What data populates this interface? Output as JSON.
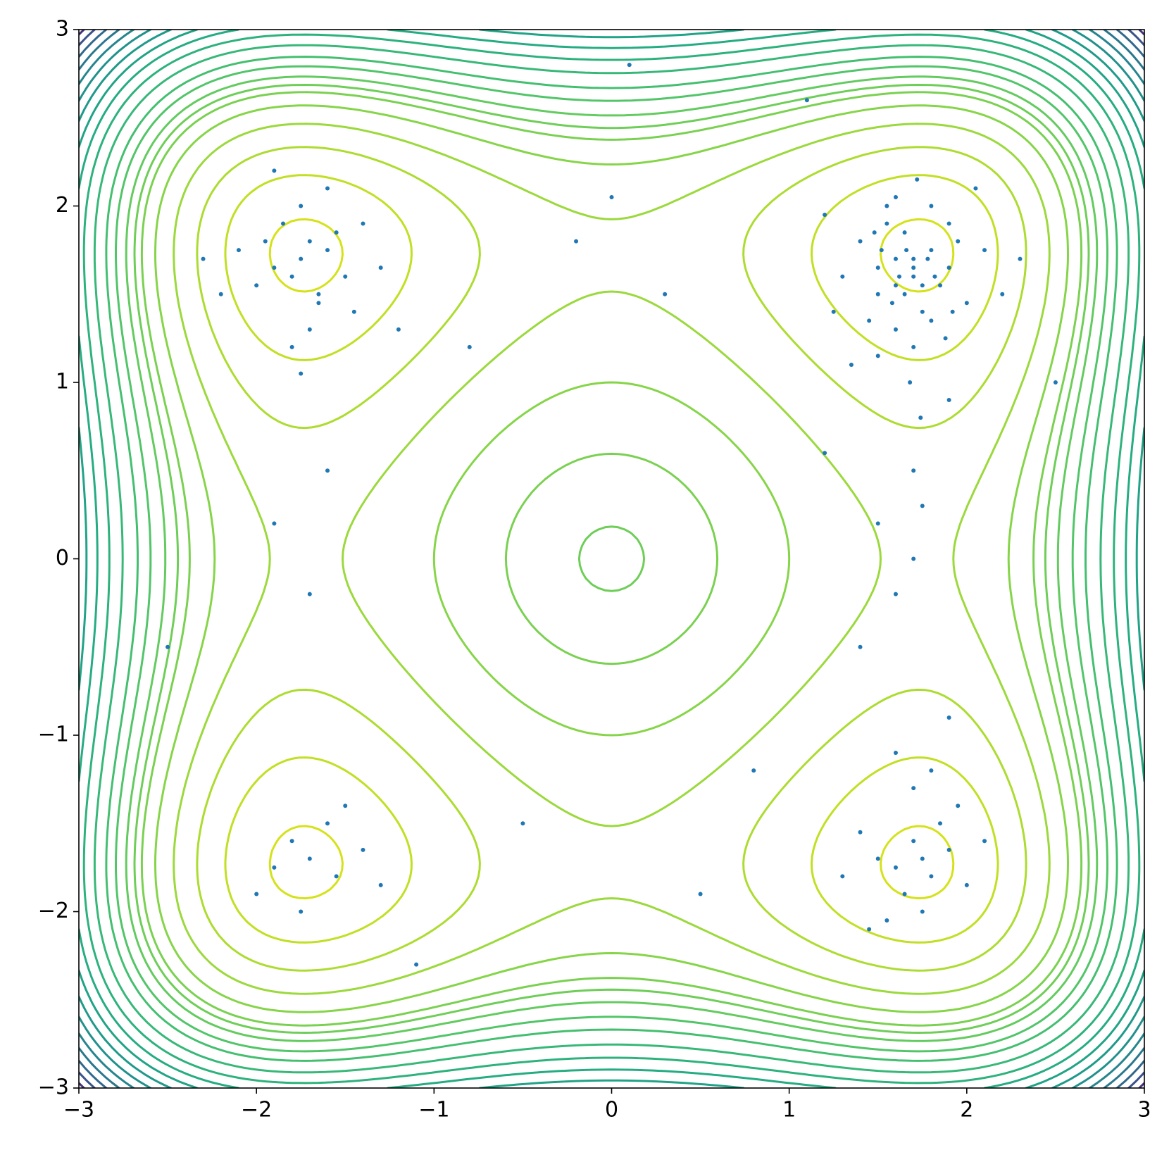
{
  "chart_data": {
    "type": "contour",
    "xlim": [
      -3,
      3
    ],
    "ylim": [
      -3,
      3
    ],
    "xticks": [
      {
        "value": -3,
        "label": "−3"
      },
      {
        "value": -2,
        "label": "−2"
      },
      {
        "value": -1,
        "label": "−1"
      },
      0,
      1,
      2,
      3
    ],
    "yticks": [
      {
        "value": -3,
        "label": "−3"
      },
      {
        "value": -2,
        "label": "−2"
      },
      {
        "value": -1,
        "label": "−1"
      },
      0,
      1,
      2,
      3
    ],
    "contours": {
      "levels": [
        0.5,
        3,
        6,
        9.5,
        13,
        16,
        17.8,
        20,
        23,
        26,
        30,
        34,
        38,
        42,
        46,
        50,
        54,
        58,
        62,
        66,
        70
      ],
      "colors": [
        "#d5e21a",
        "#c2df23",
        "#addc30",
        "#9bd93c",
        "#86d549",
        "#7ad151",
        "#6ece58",
        "#63cb5f",
        "#52c569",
        "#44bf70",
        "#37b878",
        "#2db27d",
        "#25ac82",
        "#20a386",
        "#1f9a8a",
        "#21918c",
        "#25858e",
        "#2a788e",
        "#31688e",
        "#3b528b",
        "#46327e"
      ]
    },
    "scatter": {
      "color": "#1f77b4",
      "x": [
        1.6,
        1.7,
        1.8,
        1.5,
        1.9,
        1.65,
        1.75,
        1.55,
        1.85,
        1.7,
        1.4,
        2.0,
        1.6,
        1.8,
        1.3,
        2.1,
        1.7,
        1.5,
        1.9,
        1.6,
        1.75,
        1.45,
        1.95,
        1.62,
        1.78,
        1.2,
        2.2,
        1.68,
        1.52,
        1.88,
        1.72,
        1.58,
        1.82,
        1.35,
        2.05,
        1.66,
        1.74,
        1.48,
        1.92,
        1.6,
        1.7,
        1.8,
        1.55,
        1.65,
        1.25,
        2.3,
        1.7,
        1.9,
        1.5,
        1.75,
        -1.75,
        -1.7,
        -1.8,
        -1.6,
        -1.9,
        -1.65,
        -1.85,
        -1.55,
        -2.0,
        -1.5,
        -1.75,
        -1.95,
        -1.45,
        -2.1,
        -1.7,
        -1.8,
        -1.6,
        -1.4,
        -2.2,
        -1.3,
        -1.75,
        -1.65,
        -1.9,
        -1.2,
        -2.3,
        1.75,
        1.7,
        1.8,
        1.6,
        1.9,
        1.65,
        1.85,
        1.5,
        2.0,
        1.4,
        1.75,
        1.95,
        1.55,
        1.3,
        2.1,
        1.7,
        1.8,
        1.6,
        1.45,
        1.9,
        -1.7,
        -1.8,
        -1.55,
        -1.9,
        -1.6,
        -1.4,
        -2.0,
        -1.75,
        -1.3,
        -1.5,
        0.0,
        -0.2,
        0.3,
        0.5,
        -0.8,
        1.5,
        1.6,
        1.4,
        1.7,
        1.2,
        -1.9,
        -1.7,
        -1.6,
        0.8,
        -0.5,
        2.5,
        -2.5,
        0.1,
        -1.1,
        1.1
      ],
      "y": [
        1.7,
        1.6,
        1.75,
        1.5,
        1.65,
        1.85,
        1.4,
        1.9,
        1.55,
        1.7,
        1.8,
        1.45,
        1.3,
        2.0,
        1.6,
        1.75,
        1.2,
        1.65,
        1.9,
        2.05,
        1.55,
        1.35,
        1.8,
        1.6,
        1.7,
        1.95,
        1.5,
        1.0,
        1.75,
        1.25,
        2.15,
        1.45,
        1.6,
        1.1,
        2.1,
        1.75,
        0.8,
        1.85,
        1.4,
        1.55,
        1.65,
        1.35,
        2.0,
        1.5,
        1.4,
        1.7,
        0.5,
        0.9,
        1.15,
        0.3,
        1.7,
        1.8,
        1.6,
        1.75,
        1.65,
        1.5,
        1.9,
        1.85,
        1.55,
        1.6,
        2.0,
        1.8,
        1.4,
        1.75,
        1.3,
        1.2,
        2.1,
        1.9,
        1.5,
        1.65,
        1.05,
        1.45,
        2.2,
        1.3,
        1.7,
        -1.7,
        -1.6,
        -1.8,
        -1.75,
        -1.65,
        -1.9,
        -1.5,
        -1.7,
        -1.85,
        -1.55,
        -2.0,
        -1.4,
        -2.05,
        -1.8,
        -1.6,
        -1.3,
        -1.2,
        -1.1,
        -2.1,
        -0.9,
        -1.7,
        -1.6,
        -1.8,
        -1.75,
        -1.5,
        -1.65,
        -1.9,
        -2.0,
        -1.85,
        -1.4,
        2.05,
        1.8,
        1.5,
        -1.9,
        1.2,
        0.2,
        -0.2,
        -0.5,
        0.0,
        0.6,
        0.2,
        -0.2,
        0.5,
        -1.2,
        -1.5,
        1.0,
        -0.5,
        2.8,
        -2.3,
        2.6
      ]
    }
  }
}
